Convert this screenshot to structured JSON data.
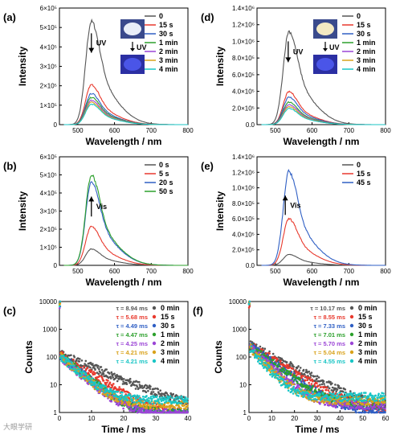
{
  "chart_data": [
    {
      "id": "a",
      "type": "line",
      "panel_label": "(a)",
      "xlabel": "Wavelength / nm",
      "ylabel": "Intensity",
      "xlim": [
        450,
        800
      ],
      "ylim": [
        0,
        600000
      ],
      "xticks": [
        500,
        600,
        700,
        800
      ],
      "yticks": [
        0,
        100000,
        200000,
        300000,
        400000,
        500000,
        600000
      ],
      "ytick_labels": [
        "0",
        "1×10⁵",
        "2×10⁵",
        "3×10⁵",
        "4×10⁵",
        "5×10⁵",
        "6×10⁵"
      ],
      "legend_position": "top-right",
      "annotation": {
        "text": "UV",
        "arrow": "down",
        "x": 537,
        "y_from": 470000,
        "y_to": 370000
      },
      "inset_arrow_label": "UV",
      "series": [
        {
          "name": "0",
          "color": "#555555",
          "peak": 530000
        },
        {
          "name": "15 s",
          "color": "#e8392d",
          "peak": 205000
        },
        {
          "name": "30 s",
          "color": "#2f5fc4",
          "peak": 160000
        },
        {
          "name": "1 min",
          "color": "#2ca02c",
          "peak": 140000
        },
        {
          "name": "2 min",
          "color": "#9b45d6",
          "peak": 125000
        },
        {
          "name": "3 min",
          "color": "#d9a21b",
          "peak": 115000
        },
        {
          "name": "4 min",
          "color": "#19c5c5",
          "peak": 105000
        }
      ]
    },
    {
      "id": "d",
      "type": "line",
      "panel_label": "(d)",
      "xlabel": "Wavelength / nm",
      "ylabel": "Intensity",
      "xlim": [
        450,
        800
      ],
      "ylim": [
        0,
        1400000
      ],
      "xticks": [
        500,
        600,
        700,
        800
      ],
      "yticks": [
        0,
        200000,
        400000,
        600000,
        800000,
        1000000,
        1200000,
        1400000
      ],
      "ytick_labels": [
        "0.0",
        "2.0×10⁵",
        "4.0×10⁵",
        "6.0×10⁵",
        "8.0×10⁵",
        "1.0×10⁶",
        "1.2×10⁶",
        "1.4×10⁶"
      ],
      "legend_position": "top-right",
      "annotation": {
        "text": "UV",
        "arrow": "down",
        "x": 535,
        "y_from": 1000000,
        "y_to": 750000
      },
      "inset_arrow_label": "UV",
      "series": [
        {
          "name": "0",
          "color": "#555555",
          "peak": 1120000
        },
        {
          "name": "15 s",
          "color": "#e8392d",
          "peak": 395000
        },
        {
          "name": "30 s",
          "color": "#2f5fc4",
          "peak": 330000
        },
        {
          "name": "1 min",
          "color": "#2ca02c",
          "peak": 270000
        },
        {
          "name": "2 min",
          "color": "#9b45d6",
          "peak": 240000
        },
        {
          "name": "3 min",
          "color": "#d9a21b",
          "peak": 215000
        },
        {
          "name": "4 min",
          "color": "#19c5c5",
          "peak": 195000
        }
      ]
    },
    {
      "id": "b",
      "type": "line",
      "panel_label": "(b)",
      "xlabel": "Wavelength / nm",
      "ylabel": "Intensity",
      "xlim": [
        450,
        800
      ],
      "ylim": [
        0,
        600000
      ],
      "xticks": [
        500,
        600,
        700,
        800
      ],
      "yticks": [
        0,
        100000,
        200000,
        300000,
        400000,
        500000,
        600000
      ],
      "ytick_labels": [
        "0",
        "1×10⁵",
        "2×10⁵",
        "3×10⁵",
        "4×10⁵",
        "5×10⁵",
        "6×10⁵"
      ],
      "legend_position": "top-right",
      "annotation": {
        "text": "Vis",
        "arrow": "up",
        "x": 537,
        "y_from": 270000,
        "y_to": 380000
      },
      "series": [
        {
          "name": "0 s",
          "color": "#555555",
          "peak": 90000
        },
        {
          "name": "5 s",
          "color": "#e8392d",
          "peak": 215000
        },
        {
          "name": "20 s",
          "color": "#2f5fc4",
          "peak": 460000
        },
        {
          "name": "50 s",
          "color": "#2ca02c",
          "peak": 500000
        }
      ]
    },
    {
      "id": "e",
      "type": "line",
      "panel_label": "(e)",
      "xlabel": "Wavelength / nm",
      "ylabel": "Intensity",
      "xlim": [
        450,
        800
      ],
      "ylim": [
        0,
        1400000
      ],
      "xticks": [
        500,
        600,
        700,
        800
      ],
      "yticks": [
        0,
        200000,
        400000,
        600000,
        800000,
        1000000,
        1200000,
        1400000
      ],
      "ytick_labels": [
        "0.0",
        "2.0×10⁵",
        "4.0×10⁵",
        "6.0×10⁵",
        "8.0×10⁵",
        "1.0×10⁶",
        "1.2×10⁶",
        "1.4×10⁶"
      ],
      "legend_position": "top-right",
      "annotation": {
        "text": "Vis",
        "arrow": "up",
        "x": 527,
        "y_from": 650000,
        "y_to": 900000
      },
      "series": [
        {
          "name": "0",
          "color": "#555555",
          "peak": 140000
        },
        {
          "name": "15 s",
          "color": "#e8392d",
          "peak": 600000
        },
        {
          "name": "45 s",
          "color": "#2f5fc4",
          "peak": 1210000
        }
      ]
    },
    {
      "id": "c",
      "type": "scatter",
      "panel_label": "(c)",
      "xlabel": "Time / ms",
      "ylabel": "Counts",
      "xlim": [
        0,
        40
      ],
      "yscale": "log",
      "ylim": [
        1,
        10000
      ],
      "xticks": [
        0,
        10,
        20,
        30,
        40
      ],
      "yticks": [
        1,
        10,
        100,
        1000,
        10000
      ],
      "ytick_labels": [
        "1",
        "10",
        "100",
        "1000",
        "10000"
      ],
      "legend_position": "top-right",
      "series": [
        {
          "name": "0 min",
          "tau": "τ = 8.94 ms",
          "color": "#555555",
          "tau_ms": 8.94,
          "a0": 130,
          "floor": 1
        },
        {
          "name": "15 s",
          "tau": "τ = 5.68 ms",
          "color": "#e8392d",
          "tau_ms": 5.68,
          "a0": 130,
          "floor": 1
        },
        {
          "name": "30 s",
          "tau": "τ = 4.49 ms",
          "color": "#2f5fc4",
          "tau_ms": 4.49,
          "a0": 120,
          "floor": 1
        },
        {
          "name": "1 min",
          "tau": "τ = 4.47 ms",
          "color": "#2ca02c",
          "tau_ms": 4.47,
          "a0": 120,
          "floor": 1
        },
        {
          "name": "2 min",
          "tau": "τ = 4.25 ms",
          "color": "#9b45d6",
          "tau_ms": 4.25,
          "a0": 110,
          "floor": 1
        },
        {
          "name": "3 min",
          "tau": "τ = 4.21 ms",
          "color": "#d9a21b",
          "tau_ms": 4.21,
          "a0": 110,
          "floor": 2
        },
        {
          "name": "4 min",
          "tau": "τ = 4.21 ms",
          "color": "#19c5c5",
          "tau_ms": 4.21,
          "a0": 110,
          "floor": 3
        }
      ]
    },
    {
      "id": "f",
      "type": "scatter",
      "panel_label": "(f)",
      "xlabel": "Time / ms",
      "ylabel": "Counts",
      "xlim": [
        0,
        60
      ],
      "yscale": "log",
      "ylim": [
        1,
        10000
      ],
      "xticks": [
        0,
        10,
        20,
        30,
        40,
        50,
        60
      ],
      "yticks": [
        1,
        10,
        100,
        1000,
        10000
      ],
      "ytick_labels": [
        "1",
        "10",
        "100",
        "1000",
        "10000"
      ],
      "legend_position": "top-right",
      "series": [
        {
          "name": "0 min",
          "tau": "τ = 10.17 ms",
          "color": "#555555",
          "tau_ms": 10.17,
          "a0": 280,
          "floor": 1
        },
        {
          "name": "15 s",
          "tau": "τ = 8.55 ms",
          "color": "#e8392d",
          "tau_ms": 8.55,
          "a0": 270,
          "floor": 1
        },
        {
          "name": "30 s",
          "tau": "τ = 7.33 ms",
          "color": "#2f5fc4",
          "tau_ms": 7.33,
          "a0": 260,
          "floor": 1
        },
        {
          "name": "1 min",
          "tau": "τ = 7.01 ms",
          "color": "#2ca02c",
          "tau_ms": 7.01,
          "a0": 250,
          "floor": 2
        },
        {
          "name": "2 min",
          "tau": "τ = 5.70 ms",
          "color": "#9b45d6",
          "tau_ms": 5.7,
          "a0": 240,
          "floor": 2
        },
        {
          "name": "3 min",
          "tau": "τ = 5.04 ms",
          "color": "#d9a21b",
          "tau_ms": 5.04,
          "a0": 230,
          "floor": 3
        },
        {
          "name": "4 min",
          "tau": "τ = 4.55 ms",
          "color": "#19c5c5",
          "tau_ms": 4.55,
          "a0": 220,
          "floor": 4
        }
      ]
    }
  ],
  "watermark": "大眼学研"
}
